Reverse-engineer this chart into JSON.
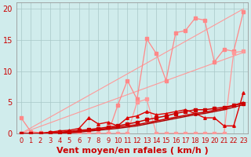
{
  "bg_color": "#d0ecec",
  "grid_color": "#a8c8c8",
  "xlabel": "Vent moyen/en rafales ( km/h )",
  "ylabel_ticks": [
    0,
    5,
    10,
    15,
    20
  ],
  "xlim": [
    -0.5,
    23.5
  ],
  "ylim": [
    0,
    21
  ],
  "x": [
    0,
    1,
    2,
    3,
    4,
    5,
    6,
    7,
    8,
    9,
    10,
    11,
    12,
    13,
    14,
    15,
    16,
    17,
    18,
    19,
    20,
    21,
    22,
    23
  ],
  "series": [
    {
      "y": [
        2.5,
        0.3,
        0.1,
        0.0,
        0.0,
        0.0,
        0.0,
        0.0,
        0.0,
        0.0,
        4.5,
        8.5,
        5.5,
        15.2,
        12.8,
        8.5,
        16.2,
        16.5,
        18.5,
        18.2,
        11.5,
        13.5,
        13.2,
        19.5
      ],
      "color": "#ff8888",
      "marker": "s",
      "ms": 2.5,
      "lw": 0.9,
      "zorder": 3
    },
    {
      "y": [
        0,
        0,
        0,
        0,
        0,
        0,
        0,
        0,
        0,
        0,
        0,
        0,
        5.0,
        5.5,
        0,
        0,
        0,
        0,
        0,
        0,
        0,
        0,
        13.0,
        13.2
      ],
      "color": "#ff9999",
      "marker": "s",
      "ms": 2.5,
      "lw": 0.9,
      "zorder": 3
    },
    {
      "y": [
        0,
        0,
        0,
        0,
        0,
        0,
        0,
        0,
        0,
        0,
        0,
        0,
        0,
        0,
        0,
        0,
        0,
        0,
        0,
        0,
        0,
        0,
        0,
        20
      ],
      "color": "#ff9999",
      "marker": null,
      "ms": 0,
      "lw": 0.8,
      "zorder": 2,
      "straight": true,
      "x0": 0,
      "y0": 0,
      "x1": 23,
      "y1": 20
    },
    {
      "y": [
        0,
        0,
        0,
        0,
        0,
        0,
        0,
        0,
        0,
        0,
        0,
        0,
        0,
        0,
        0,
        0,
        0,
        0,
        0,
        0,
        0,
        0,
        0,
        13
      ],
      "color": "#ff9999",
      "marker": null,
      "ms": 0,
      "lw": 0.8,
      "zorder": 2,
      "straight": true,
      "x0": 0,
      "y0": 0,
      "x1": 23,
      "y1": 13
    },
    {
      "y": [
        0,
        0,
        0,
        0.2,
        0.4,
        0.5,
        0.8,
        2.5,
        1.5,
        1.8,
        1.2,
        2.5,
        2.8,
        3.5,
        3.0,
        3.2,
        3.5,
        3.8,
        3.2,
        2.5,
        2.5,
        1.2,
        1.2,
        6.5
      ],
      "color": "#dd0000",
      "marker": "^",
      "ms": 2.5,
      "lw": 1.0,
      "zorder": 4
    },
    {
      "y": [
        0,
        0,
        0,
        0.1,
        0.2,
        0.3,
        0.5,
        0.6,
        0.8,
        1.0,
        1.2,
        1.5,
        1.8,
        2.2,
        2.5,
        2.8,
        3.2,
        3.5,
        3.8,
        3.8,
        4.0,
        4.2,
        4.5,
        4.8
      ],
      "color": "#cc0000",
      "marker": "s",
      "ms": 2.5,
      "lw": 1.1,
      "zorder": 5
    },
    {
      "y": [
        0,
        0,
        0,
        0.05,
        0.1,
        0.2,
        0.35,
        0.5,
        0.65,
        0.8,
        1.0,
        1.2,
        1.4,
        1.7,
        2.0,
        2.3,
        2.6,
        2.9,
        3.2,
        3.4,
        3.7,
        4.0,
        4.5,
        5.0
      ],
      "color": "#cc0000",
      "marker": null,
      "ms": 0,
      "lw": 1.1,
      "zorder": 5
    },
    {
      "y": [
        0,
        0,
        0,
        0,
        0.05,
        0.1,
        0.2,
        0.35,
        0.5,
        0.65,
        0.8,
        1.0,
        1.2,
        1.5,
        1.8,
        2.1,
        2.4,
        2.7,
        3.0,
        3.2,
        3.5,
        3.8,
        4.2,
        4.6
      ],
      "color": "#aa0000",
      "marker": null,
      "ms": 0,
      "lw": 1.0,
      "zorder": 4
    }
  ],
  "xlabel_fontsize": 8,
  "tick_fontsize": 6,
  "tick_color": "#cc0000"
}
